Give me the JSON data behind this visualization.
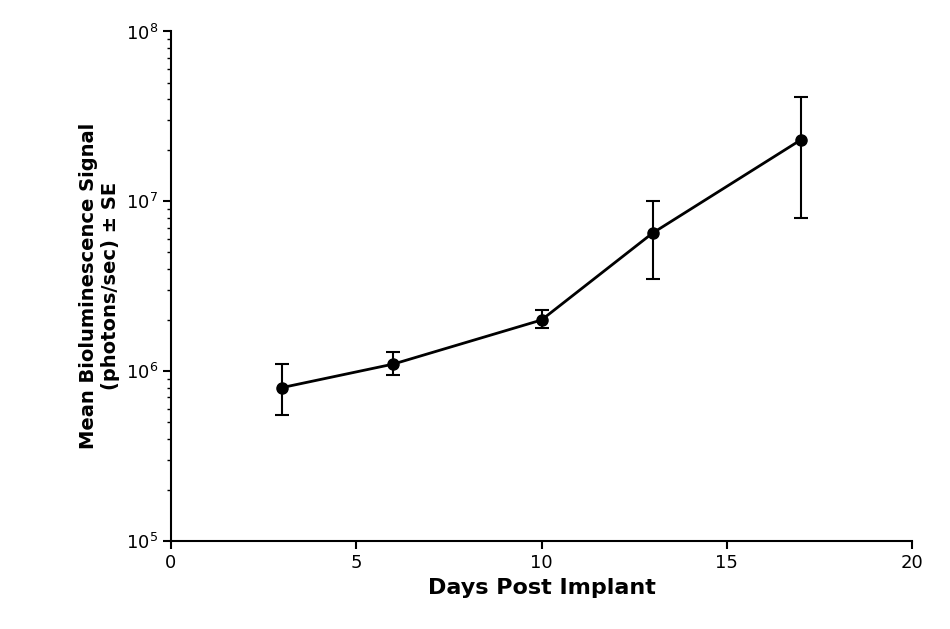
{
  "x": [
    3,
    6,
    10,
    13,
    17
  ],
  "y": [
    800000,
    1100000,
    2000000,
    6500000,
    23000000
  ],
  "yerr_upper": [
    300000,
    200000,
    300000,
    3500000,
    18000000
  ],
  "yerr_lower": [
    250000,
    150000,
    200000,
    3000000,
    15000000
  ],
  "xlabel": "Days Post Implant",
  "ylabel": "Mean Bioluminescence Signal\n(photons/sec) ± SE",
  "xlim": [
    0,
    20
  ],
  "ylim": [
    100000.0,
    100000000.0
  ],
  "xticks": [
    0,
    5,
    10,
    15,
    20
  ],
  "line_color": "#000000",
  "markersize": 8,
  "linewidth": 2.0,
  "xlabel_fontsize": 16,
  "ylabel_fontsize": 14,
  "tick_fontsize": 13,
  "background_color": "#ffffff"
}
